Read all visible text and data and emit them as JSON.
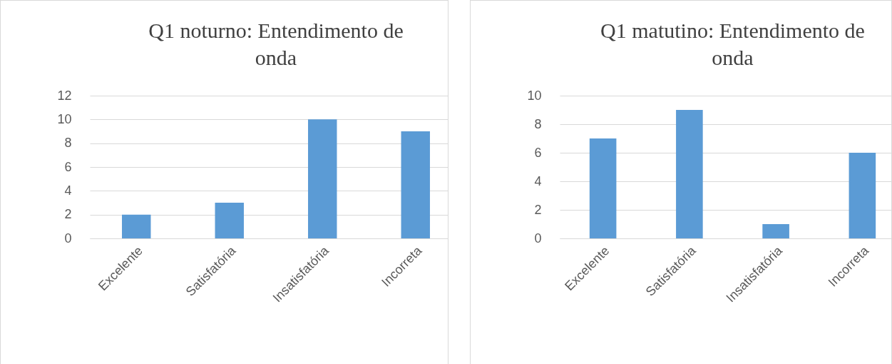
{
  "chart_data": [
    {
      "type": "bar",
      "title": "Q1 noturno: Entendimento de onda",
      "categories": [
        "Excelente",
        "Satisfatória",
        "Insatisfatória",
        "Incorreta"
      ],
      "values": [
        2,
        3,
        10,
        9
      ],
      "color": "#5b9bd5",
      "ylim": [
        0,
        12
      ],
      "yticks": [
        0,
        2,
        4,
        6,
        8,
        10,
        12
      ],
      "grid": "y"
    },
    {
      "type": "bar",
      "title": "Q1 matutino: Entendimento de onda",
      "categories": [
        "Excelente",
        "Satisfatória",
        "Insatisfatória",
        "Incorreta"
      ],
      "values": [
        7,
        9,
        1,
        6
      ],
      "color": "#5b9bd5",
      "ylim": [
        0,
        10
      ],
      "yticks": [
        0,
        2,
        4,
        6,
        8,
        10
      ],
      "grid": "y"
    }
  ]
}
